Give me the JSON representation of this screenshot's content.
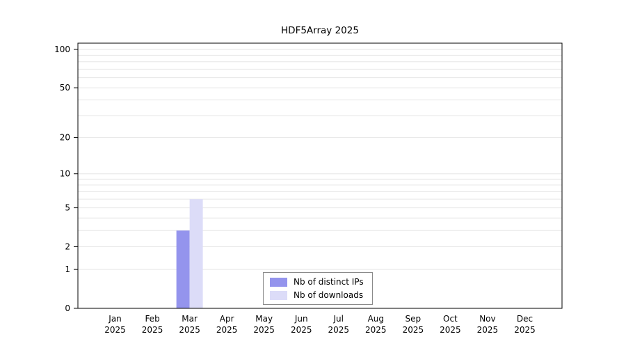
{
  "figure": {
    "title": "HDF5Array 2025"
  },
  "chart_data": {
    "type": "bar",
    "title": "HDF5Array 2025",
    "categories": [
      "Jan",
      "Feb",
      "Mar",
      "Apr",
      "May",
      "Jun",
      "Jul",
      "Aug",
      "Sep",
      "Oct",
      "Nov",
      "Dec"
    ],
    "year_label": "2025",
    "series": [
      {
        "name": "Nb of distinct IPs",
        "color": "#9494ed",
        "values": [
          0,
          0,
          3,
          0,
          0,
          0,
          0,
          0,
          0,
          0,
          0,
          0
        ]
      },
      {
        "name": "Nb of downloads",
        "color": "#dcdcf8",
        "values": [
          0,
          0,
          6,
          0,
          0,
          0,
          0,
          0,
          0,
          0,
          0,
          0
        ]
      }
    ],
    "y_ticks": [
      0,
      1,
      2,
      5,
      10,
      20,
      50,
      100
    ],
    "y_scale": "log1p",
    "ylim": [
      0,
      100
    ],
    "grid": "horizontal-minor",
    "grid_values": [
      1,
      2,
      3,
      4,
      5,
      6,
      7,
      8,
      9,
      10,
      20,
      30,
      40,
      50,
      60,
      70,
      80,
      90,
      100
    ],
    "grid_color": "#e6e6e6",
    "axis_color": "#000000",
    "legend_position": "bottom-center",
    "xlabel": "",
    "ylabel": ""
  }
}
